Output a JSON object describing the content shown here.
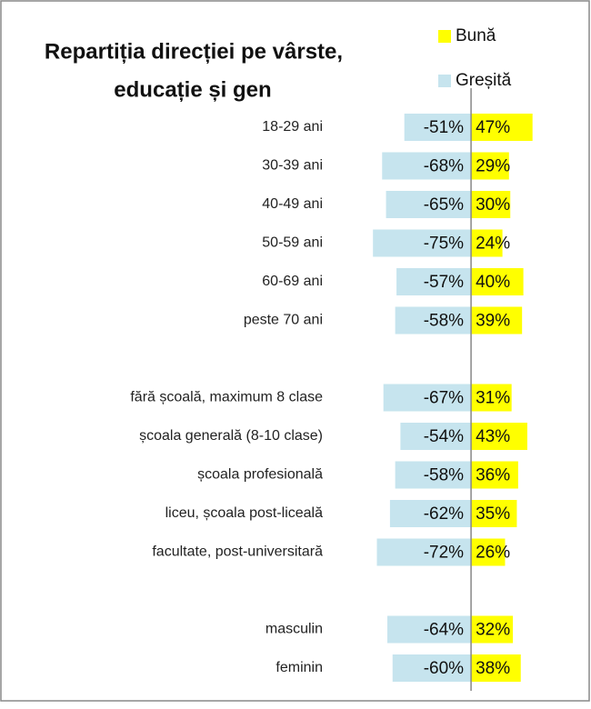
{
  "chart_data": {
    "type": "diverging-bar",
    "title": [
      "Repartiția direcției pe vârste,",
      "educație și gen"
    ],
    "categories": [
      "18-29 ani",
      "30-39 ani",
      "40-49 ani",
      "50-59 ani",
      "60-69 ani",
      "peste 70 ani",
      null,
      "fără școală, maximum 8 clase",
      "școala generală (8-10 clase)",
      "școala profesională",
      "liceu, școala post-liceală",
      "facultate, post-universitară",
      null,
      "masculin",
      "feminin"
    ],
    "series": [
      {
        "name": "Bună",
        "color": "#ffff00",
        "values": [
          47,
          29,
          30,
          24,
          40,
          39,
          null,
          31,
          43,
          36,
          35,
          26,
          null,
          32,
          38
        ],
        "value_labels": [
          "47%",
          "29%",
          "30%",
          "24%",
          "40%",
          "39%",
          null,
          "31%",
          "43%",
          "36%",
          "35%",
          "26%",
          null,
          "32%",
          "38%"
        ]
      },
      {
        "name": "Greșită",
        "color": "#c6e4ee",
        "values": [
          -51,
          -68,
          -65,
          -75,
          -57,
          -58,
          null,
          -67,
          -54,
          -58,
          -62,
          -72,
          null,
          -64,
          -60
        ],
        "value_labels": [
          "-51%",
          "-68%",
          "-65%",
          "-75%",
          "-57%",
          "-58%",
          null,
          "-67%",
          "-54%",
          "-58%",
          "-62%",
          "-72%",
          null,
          "-64%",
          "-60%"
        ]
      }
    ],
    "xlim": [
      -80,
      50
    ]
  }
}
